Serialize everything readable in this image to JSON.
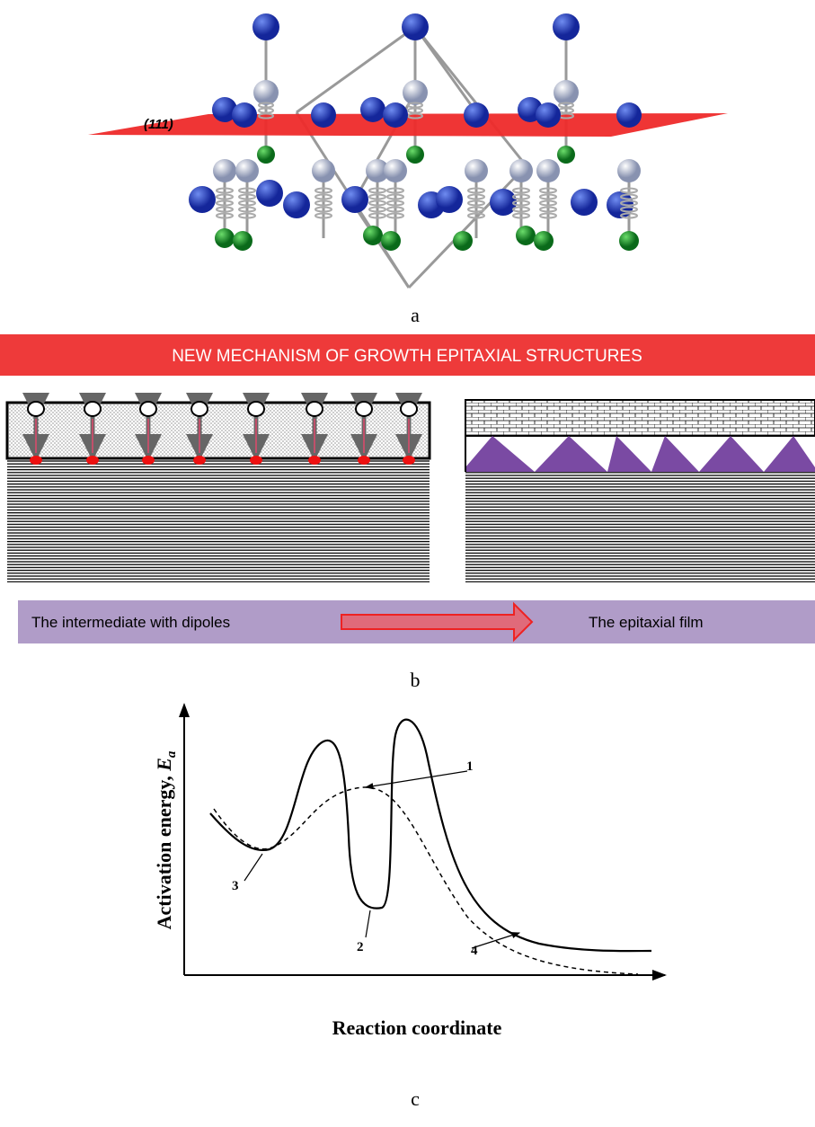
{
  "panel_a": {
    "plane_label": "(111)",
    "caption": "a"
  },
  "panel_b": {
    "banner": "NEW MECHANISM OF GROWTH EPITAXIAL  STRUCTURES",
    "from_label": "The intermediate with dipoles",
    "to_label": "The epitaxial film",
    "caption": "b"
  },
  "panel_c": {
    "y_axis_label": {
      "text": "Activation energy, ",
      "symbol": "E",
      "subscript": "a"
    },
    "x_axis_label": "Reaction coordinate",
    "curve_labels": [
      "1",
      "2",
      "3",
      "4"
    ],
    "caption": "c"
  }
}
